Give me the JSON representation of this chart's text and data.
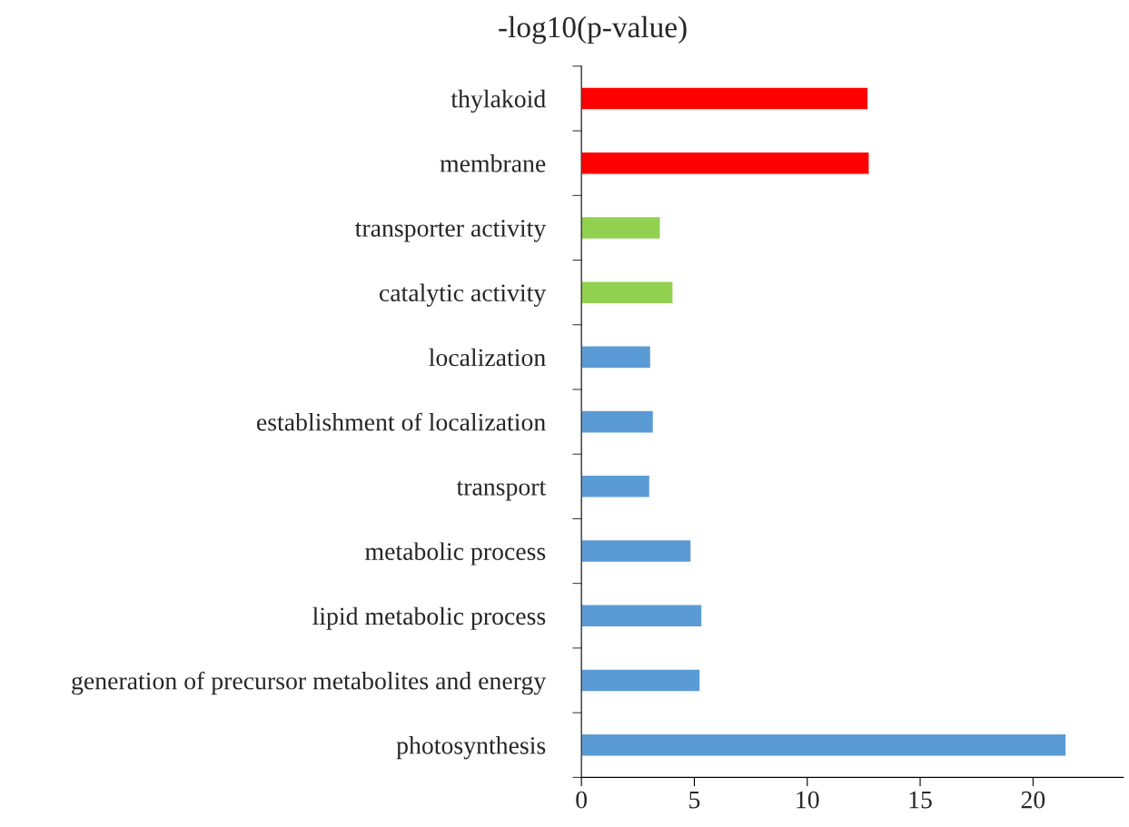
{
  "chart_data": {
    "type": "bar",
    "orientation": "horizontal",
    "title": "-log10(p-value)",
    "categories": [
      "thylakoid",
      "membrane",
      "transporter activity",
      "catalytic activity",
      "localization",
      "establishment of localization",
      "transport",
      "metabolic process",
      "lipid metabolic process",
      "generation of precursor metabolites and energy",
      "photosynthesis"
    ],
    "values": [
      12.7,
      12.75,
      3.5,
      4.06,
      3.07,
      3.19,
      3.03,
      4.86,
      5.34,
      5.26,
      21.47
    ],
    "colors": [
      "#ff0000",
      "#ff0000",
      "#92d050",
      "#92d050",
      "#5b9bd5",
      "#5b9bd5",
      "#5b9bd5",
      "#5b9bd5",
      "#5b9bd5",
      "#5b9bd5",
      "#5b9bd5"
    ],
    "xlim": [
      0,
      24
    ],
    "xticks": [
      0,
      5,
      10,
      15,
      20
    ],
    "grid": false,
    "legend": false
  }
}
